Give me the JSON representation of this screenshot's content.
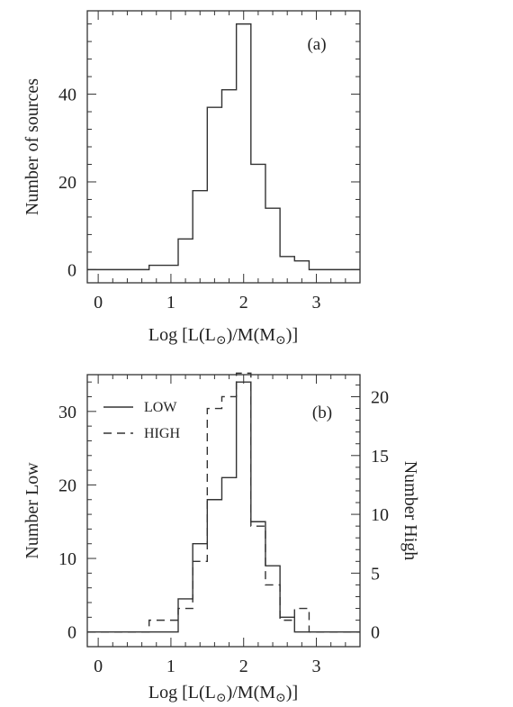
{
  "chart_data": [
    {
      "type": "histogram",
      "panel_label": "(a)",
      "xlabel_main": "Log [L(L",
      "xlabel_mid": ")/M(M",
      "xlabel_end": ")]",
      "ylabel": "Number of sources",
      "xlim": [
        -0.15,
        3.6
      ],
      "ylim": [
        -3,
        59
      ],
      "x_ticks": [
        "0",
        "1",
        "2",
        "3"
      ],
      "y_ticks": [
        "0",
        "20",
        "40"
      ],
      "bin_edges": [
        -0.15,
        0.7,
        1.1,
        1.3,
        1.5,
        1.7,
        1.9,
        2.1,
        2.3,
        2.5,
        2.7,
        2.9,
        3.6
      ],
      "series": [
        {
          "style": "solid",
          "values": [
            0,
            1,
            7,
            18,
            37,
            41,
            56,
            24,
            14,
            3,
            2,
            0
          ]
        }
      ]
    },
    {
      "type": "histogram",
      "panel_label": "(b)",
      "xlabel_main": "Log [L(L",
      "xlabel_mid": ")/M(M",
      "xlabel_end": ")]",
      "ylabel_left": "Number Low",
      "ylabel_right": "Number High",
      "xlim": [
        -0.15,
        3.6
      ],
      "ylim_left": [
        -2,
        35
      ],
      "ylim_right": [
        -1.25,
        21.875
      ],
      "x_ticks": [
        "0",
        "1",
        "2",
        "3"
      ],
      "y_ticks_left": [
        "0",
        "10",
        "20",
        "30"
      ],
      "y_ticks_right": [
        "0",
        "5",
        "10",
        "15",
        "20"
      ],
      "bin_edges": [
        -0.15,
        0.7,
        1.1,
        1.3,
        1.5,
        1.7,
        1.9,
        2.1,
        2.3,
        2.5,
        2.7,
        2.9,
        3.6
      ],
      "legend": [
        {
          "label": "LOW",
          "style": "solid"
        },
        {
          "label": "HIGH",
          "style": "dashed"
        }
      ],
      "series": [
        {
          "name": "LOW",
          "axis": "left",
          "style": "solid",
          "values": [
            0,
            0,
            4.5,
            12,
            18,
            21,
            34,
            15,
            9,
            2,
            0,
            0
          ]
        },
        {
          "name": "HIGH",
          "axis": "right",
          "style": "dashed",
          "values": [
            0,
            1,
            2,
            6,
            19,
            20,
            22,
            9,
            4,
            1,
            2,
            0
          ]
        }
      ]
    }
  ]
}
